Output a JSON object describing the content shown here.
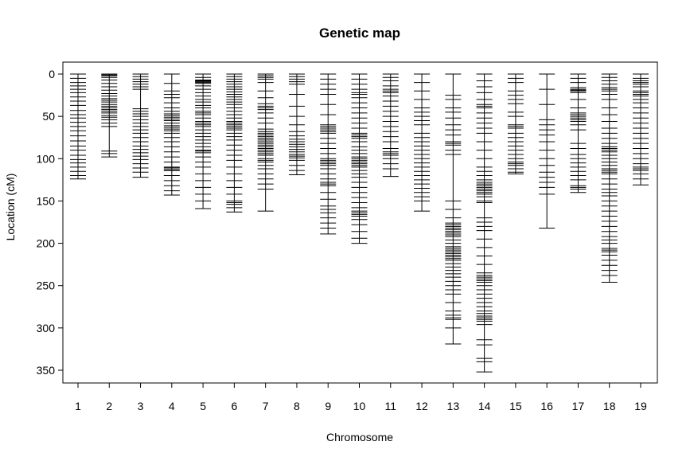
{
  "chart_data": {
    "type": "genetic-map",
    "title": "Genetic map",
    "xlabel": "Chromosome",
    "ylabel": "Location (cM)",
    "ylim": [
      0,
      365
    ],
    "y_reversed": true,
    "yticks": [
      0,
      50,
      100,
      150,
      200,
      250,
      300,
      350
    ],
    "grid": false,
    "legend": "none",
    "line_color": "#000000",
    "chromosomes": [
      {
        "name": "1",
        "length": 124,
        "markers": [
          0,
          5,
          10,
          14,
          18,
          22,
          27,
          32,
          37,
          43,
          48,
          52,
          57,
          62,
          67,
          73,
          79,
          85,
          90,
          96,
          101,
          105,
          110,
          115,
          120,
          124
        ]
      },
      {
        "name": "2",
        "length": 98,
        "markers": [
          0,
          1,
          2,
          4,
          7,
          11,
          15,
          19,
          23,
          26,
          29,
          31,
          33,
          36,
          38,
          40,
          42,
          44,
          46,
          49,
          51,
          54,
          58,
          62,
          91,
          94,
          98
        ]
      },
      {
        "name": "3",
        "length": 122,
        "markers": [
          0,
          3,
          6,
          9,
          12,
          15,
          18,
          41,
          44,
          47,
          50,
          54,
          58,
          62,
          66,
          70,
          75,
          80,
          85,
          89,
          93,
          97,
          101,
          106,
          111,
          116,
          122
        ]
      },
      {
        "name": "4",
        "length": 143,
        "markers": [
          0,
          11,
          20,
          24,
          28,
          34,
          40,
          44,
          47,
          49,
          51,
          53,
          55,
          58,
          61,
          63,
          65,
          67,
          70,
          75,
          80,
          86,
          92,
          98,
          104,
          110,
          111,
          113,
          114,
          120,
          126,
          132,
          138,
          143
        ]
      },
      {
        "name": "5",
        "length": 159,
        "markers": [
          0,
          4,
          7,
          8,
          9,
          10,
          11,
          14,
          18,
          22,
          26,
          30,
          33,
          37,
          40,
          44,
          46,
          48,
          52,
          56,
          58,
          60,
          62,
          66,
          70,
          74,
          78,
          82,
          86,
          90,
          91,
          93,
          98,
          104,
          110,
          118,
          126,
          134,
          142,
          150,
          159
        ]
      },
      {
        "name": "6",
        "length": 163,
        "markers": [
          0,
          3,
          6,
          9,
          12,
          15,
          18,
          21,
          24,
          27,
          30,
          33,
          36,
          40,
          44,
          48,
          52,
          56,
          58,
          60,
          62,
          64,
          66,
          70,
          74,
          78,
          84,
          90,
          96,
          102,
          110,
          118,
          126,
          134,
          142,
          150,
          152,
          154,
          158,
          163
        ]
      },
      {
        "name": "7",
        "length": 162,
        "markers": [
          0,
          2,
          4,
          6,
          10,
          20,
          28,
          35,
          38,
          40,
          42,
          46,
          52,
          58,
          65,
          68,
          70,
          72,
          74,
          76,
          78,
          80,
          82,
          84,
          86,
          88,
          90,
          92,
          94,
          96,
          100,
          102,
          104,
          108,
          112,
          118,
          124,
          130,
          136,
          162
        ]
      },
      {
        "name": "8",
        "length": 119,
        "markers": [
          0,
          3,
          6,
          9,
          12,
          24,
          38,
          50,
          60,
          68,
          73,
          77,
          80,
          83,
          86,
          89,
          92,
          95,
          97,
          99,
          102,
          108,
          114,
          119
        ]
      },
      {
        "name": "9",
        "length": 189,
        "markers": [
          0,
          6,
          12,
          18,
          24,
          36,
          48,
          60,
          62,
          64,
          66,
          68,
          70,
          76,
          82,
          88,
          94,
          100,
          102,
          104,
          106,
          108,
          112,
          118,
          124,
          128,
          130,
          132,
          140,
          148,
          156,
          160,
          164,
          170,
          176,
          182,
          189
        ]
      },
      {
        "name": "10",
        "length": 200,
        "markers": [
          0,
          6,
          12,
          18,
          22,
          24,
          28,
          34,
          40,
          46,
          52,
          58,
          64,
          70,
          72,
          74,
          76,
          80,
          86,
          90,
          94,
          98,
          100,
          102,
          104,
          106,
          108,
          110,
          114,
          118,
          122,
          128,
          134,
          140,
          146,
          152,
          158,
          162,
          164,
          166,
          168,
          172,
          178,
          186,
          194,
          200
        ]
      },
      {
        "name": "11",
        "length": 121,
        "markers": [
          0,
          4,
          8,
          14,
          18,
          20,
          22,
          26,
          32,
          38,
          44,
          50,
          56,
          62,
          68,
          74,
          80,
          88,
          92,
          94,
          96,
          100,
          106,
          112,
          121
        ]
      },
      {
        "name": "12",
        "length": 162,
        "markers": [
          0,
          10,
          20,
          30,
          40,
          45,
          50,
          55,
          60,
          70,
          75,
          80,
          85,
          90,
          95,
          100,
          105,
          110,
          115,
          120,
          125,
          130,
          135,
          140,
          145,
          150,
          162
        ]
      },
      {
        "name": "13",
        "length": 319,
        "markers": [
          0,
          25,
          30,
          40,
          45,
          52,
          60,
          66,
          72,
          80,
          82,
          84,
          90,
          95,
          150,
          160,
          170,
          176,
          178,
          180,
          182,
          184,
          186,
          188,
          190,
          192,
          196,
          200,
          204,
          206,
          208,
          210,
          212,
          214,
          216,
          218,
          220,
          224,
          228,
          232,
          236,
          240,
          245,
          250,
          255,
          260,
          270,
          280,
          285,
          288,
          290,
          300,
          319
        ]
      },
      {
        "name": "14",
        "length": 352,
        "markers": [
          0,
          8,
          15,
          22,
          30,
          36,
          38,
          40,
          46,
          52,
          58,
          64,
          70,
          80,
          90,
          100,
          110,
          115,
          120,
          125,
          128,
          130,
          132,
          134,
          136,
          138,
          140,
          142,
          145,
          150,
          152,
          170,
          175,
          180,
          185,
          195,
          205,
          215,
          225,
          235,
          238,
          240,
          242,
          244,
          246,
          250,
          255,
          260,
          265,
          270,
          275,
          280,
          283,
          286,
          288,
          290,
          292,
          296,
          314,
          320,
          336,
          340,
          352
        ]
      },
      {
        "name": "15",
        "length": 118,
        "markers": [
          0,
          5,
          10,
          20,
          25,
          30,
          35,
          45,
          50,
          60,
          62,
          64,
          70,
          75,
          80,
          85,
          90,
          95,
          100,
          104,
          106,
          108,
          112,
          116,
          118
        ]
      },
      {
        "name": "16",
        "length": 182,
        "markers": [
          0,
          18,
          36,
          54,
          60,
          66,
          72,
          80,
          90,
          100,
          108,
          116,
          122,
          128,
          134,
          142,
          182
        ]
      },
      {
        "name": "17",
        "length": 140,
        "markers": [
          0,
          5,
          10,
          16,
          18,
          19,
          20,
          22,
          30,
          40,
          46,
          48,
          50,
          52,
          54,
          56,
          60,
          66,
          82,
          88,
          95,
          100,
          105,
          110,
          115,
          120,
          125,
          132,
          134,
          136,
          140
        ]
      },
      {
        "name": "18",
        "length": 246,
        "markers": [
          0,
          4,
          8,
          12,
          16,
          18,
          20,
          24,
          30,
          40,
          48,
          56,
          64,
          70,
          76,
          82,
          86,
          88,
          90,
          92,
          96,
          100,
          104,
          108,
          112,
          114,
          116,
          118,
          124,
          130,
          136,
          140,
          144,
          150,
          156,
          162,
          168,
          174,
          180,
          186,
          192,
          196,
          200,
          206,
          208,
          210,
          214,
          220,
          226,
          232,
          238,
          246
        ]
      },
      {
        "name": "19",
        "length": 131,
        "markers": [
          0,
          5,
          8,
          10,
          12,
          15,
          20,
          22,
          24,
          26,
          30,
          34,
          40,
          46,
          52,
          58,
          64,
          70,
          76,
          82,
          88,
          94,
          100,
          106,
          110,
          112,
          114,
          118,
          124,
          131
        ]
      }
    ]
  }
}
